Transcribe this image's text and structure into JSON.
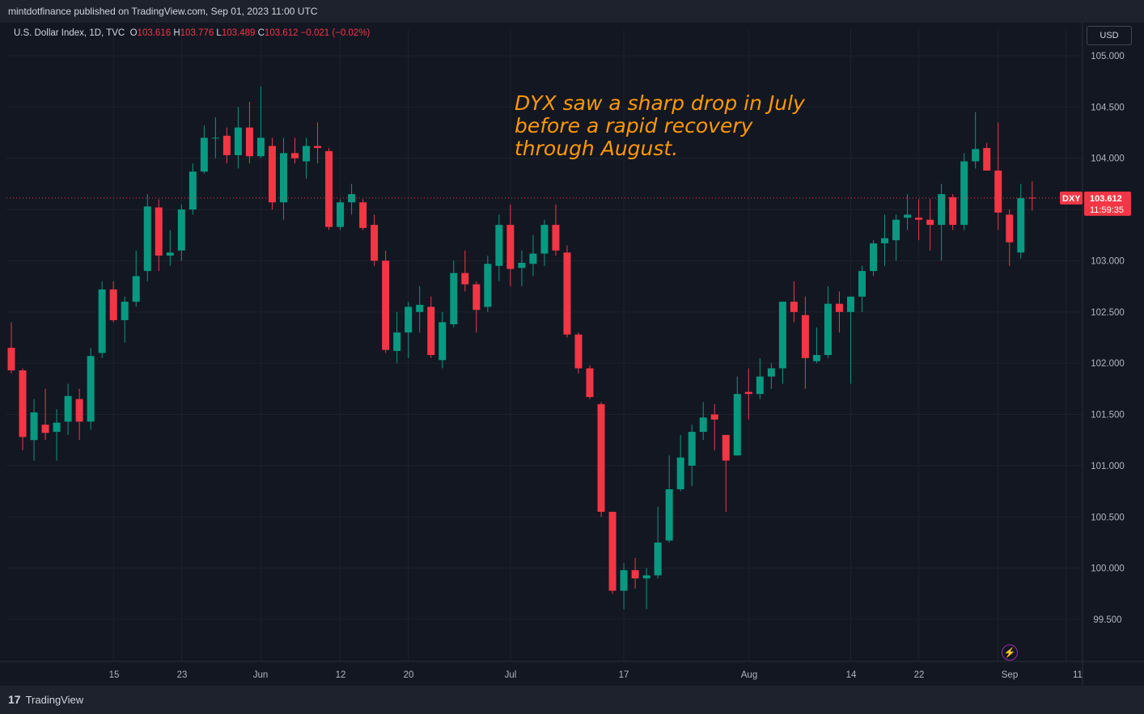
{
  "header": {
    "published_by": "mintdotfinance published on TradingView.com, Sep 01, 2023 11:00 UTC"
  },
  "legend": {
    "symbol": "U.S. Dollar Index, 1D, TVC",
    "o_label": "O",
    "o_value": "103.616",
    "h_label": "H",
    "h_value": "103.776",
    "l_label": "L",
    "l_value": "103.489",
    "c_label": "C",
    "c_value": "103.612",
    "change": "−0.021 (−0.02%)"
  },
  "currency_button": "USD",
  "annotation": {
    "line1": "DYX saw a sharp drop in July",
    "line2": "before a rapid recovery",
    "line3": "through August."
  },
  "price_tag": {
    "ticker": "DXY",
    "price": "103.612",
    "countdown": "11:59:35"
  },
  "footer": {
    "brand": "TradingView",
    "logo_text": "17"
  },
  "colors": {
    "up": "#089981",
    "down": "#f23645",
    "background": "#131722",
    "grid": "#1e222d",
    "annotation": "#ff9800"
  },
  "chart_data": {
    "type": "candlestick",
    "ylim": [
      99.2,
      105.15
    ],
    "y_ticks": [
      "105.000",
      "104.500",
      "104.000",
      "103.500",
      "103.000",
      "102.500",
      "102.000",
      "101.500",
      "101.000",
      "100.500",
      "100.000",
      "99.500"
    ],
    "x_tick_labels": [
      "15",
      "23",
      "Jun",
      "12",
      "20",
      "Jul",
      "17",
      "Aug",
      "14",
      "22",
      "Sep",
      "11"
    ],
    "last_price": 103.612,
    "candles": [
      {
        "o": 102.15,
        "h": 102.4,
        "l": 101.9,
        "c": 101.93
      },
      {
        "o": 101.93,
        "h": 101.95,
        "l": 101.15,
        "c": 101.28
      },
      {
        "o": 101.25,
        "h": 101.65,
        "l": 101.05,
        "c": 101.52
      },
      {
        "o": 101.4,
        "h": 101.75,
        "l": 101.25,
        "c": 101.32
      },
      {
        "o": 101.33,
        "h": 101.55,
        "l": 101.05,
        "c": 101.42
      },
      {
        "o": 101.43,
        "h": 101.8,
        "l": 101.3,
        "c": 101.68
      },
      {
        "o": 101.65,
        "h": 101.75,
        "l": 101.25,
        "c": 101.43
      },
      {
        "o": 101.43,
        "h": 102.15,
        "l": 101.35,
        "c": 102.07
      },
      {
        "o": 102.1,
        "h": 102.8,
        "l": 102.05,
        "c": 102.72
      },
      {
        "o": 102.72,
        "h": 102.8,
        "l": 102.4,
        "c": 102.42
      },
      {
        "o": 102.42,
        "h": 102.65,
        "l": 102.2,
        "c": 102.6
      },
      {
        "o": 102.6,
        "h": 103.1,
        "l": 102.55,
        "c": 102.85
      },
      {
        "o": 102.9,
        "h": 103.65,
        "l": 102.8,
        "c": 103.53
      },
      {
        "o": 103.52,
        "h": 103.6,
        "l": 102.9,
        "c": 103.05
      },
      {
        "o": 103.05,
        "h": 103.3,
        "l": 102.95,
        "c": 103.08
      },
      {
        "o": 103.1,
        "h": 103.55,
        "l": 103.0,
        "c": 103.5
      },
      {
        "o": 103.5,
        "h": 103.95,
        "l": 103.45,
        "c": 103.87
      },
      {
        "o": 103.87,
        "h": 104.32,
        "l": 103.85,
        "c": 104.2
      },
      {
        "o": 104.2,
        "h": 104.4,
        "l": 104.0,
        "c": 104.2
      },
      {
        "o": 104.22,
        "h": 104.3,
        "l": 103.95,
        "c": 104.03
      },
      {
        "o": 104.03,
        "h": 104.5,
        "l": 103.9,
        "c": 104.3
      },
      {
        "o": 104.3,
        "h": 104.55,
        "l": 103.95,
        "c": 104.02
      },
      {
        "o": 104.02,
        "h": 104.7,
        "l": 104.0,
        "c": 104.2
      },
      {
        "o": 104.12,
        "h": 104.2,
        "l": 103.5,
        "c": 103.57
      },
      {
        "o": 103.57,
        "h": 104.2,
        "l": 103.4,
        "c": 104.05
      },
      {
        "o": 104.05,
        "h": 104.2,
        "l": 103.95,
        "c": 104.0
      },
      {
        "o": 103.97,
        "h": 104.2,
        "l": 103.8,
        "c": 104.12
      },
      {
        "o": 104.12,
        "h": 104.35,
        "l": 103.95,
        "c": 104.1
      },
      {
        "o": 104.07,
        "h": 104.1,
        "l": 103.3,
        "c": 103.33
      },
      {
        "o": 103.33,
        "h": 103.6,
        "l": 103.3,
        "c": 103.57
      },
      {
        "o": 103.57,
        "h": 103.75,
        "l": 103.45,
        "c": 103.65
      },
      {
        "o": 103.57,
        "h": 103.6,
        "l": 103.3,
        "c": 103.32
      },
      {
        "o": 103.35,
        "h": 103.45,
        "l": 102.95,
        "c": 103.0
      },
      {
        "o": 103.0,
        "h": 103.1,
        "l": 102.1,
        "c": 102.13
      },
      {
        "o": 102.12,
        "h": 102.5,
        "l": 102.0,
        "c": 102.3
      },
      {
        "o": 102.3,
        "h": 102.6,
        "l": 102.05,
        "c": 102.55
      },
      {
        "o": 102.5,
        "h": 102.75,
        "l": 102.3,
        "c": 102.57
      },
      {
        "o": 102.55,
        "h": 102.65,
        "l": 102.05,
        "c": 102.08
      },
      {
        "o": 102.03,
        "h": 102.5,
        "l": 101.95,
        "c": 102.4
      },
      {
        "o": 102.38,
        "h": 103.0,
        "l": 102.35,
        "c": 102.88
      },
      {
        "o": 102.88,
        "h": 103.1,
        "l": 102.7,
        "c": 102.77
      },
      {
        "o": 102.77,
        "h": 102.8,
        "l": 102.3,
        "c": 102.52
      },
      {
        "o": 102.55,
        "h": 103.05,
        "l": 102.5,
        "c": 102.97
      },
      {
        "o": 102.95,
        "h": 103.45,
        "l": 102.8,
        "c": 103.35
      },
      {
        "o": 103.35,
        "h": 103.55,
        "l": 102.75,
        "c": 102.92
      },
      {
        "o": 102.93,
        "h": 103.1,
        "l": 102.75,
        "c": 102.98
      },
      {
        "o": 102.97,
        "h": 103.25,
        "l": 102.85,
        "c": 103.07
      },
      {
        "o": 103.07,
        "h": 103.4,
        "l": 102.95,
        "c": 103.35
      },
      {
        "o": 103.35,
        "h": 103.55,
        "l": 103.05,
        "c": 103.1
      },
      {
        "o": 103.08,
        "h": 103.15,
        "l": 102.25,
        "c": 102.28
      },
      {
        "o": 102.28,
        "h": 102.3,
        "l": 101.9,
        "c": 101.95
      },
      {
        "o": 101.95,
        "h": 101.98,
        "l": 101.65,
        "c": 101.67
      },
      {
        "o": 101.6,
        "h": 101.62,
        "l": 100.5,
        "c": 100.55
      },
      {
        "o": 100.55,
        "h": 100.55,
        "l": 99.75,
        "c": 99.78
      },
      {
        "o": 99.78,
        "h": 100.05,
        "l": 99.6,
        "c": 99.98
      },
      {
        "o": 99.98,
        "h": 100.1,
        "l": 99.8,
        "c": 99.9
      },
      {
        "o": 99.9,
        "h": 100.0,
        "l": 99.6,
        "c": 99.93
      },
      {
        "o": 99.93,
        "h": 100.6,
        "l": 99.9,
        "c": 100.25
      },
      {
        "o": 100.27,
        "h": 101.1,
        "l": 100.25,
        "c": 100.77
      },
      {
        "o": 100.77,
        "h": 101.3,
        "l": 100.75,
        "c": 101.08
      },
      {
        "o": 101.0,
        "h": 101.4,
        "l": 100.8,
        "c": 101.33
      },
      {
        "o": 101.33,
        "h": 101.62,
        "l": 101.25,
        "c": 101.47
      },
      {
        "o": 101.5,
        "h": 101.6,
        "l": 101.15,
        "c": 101.45
      },
      {
        "o": 101.3,
        "h": 101.3,
        "l": 100.55,
        "c": 101.05
      },
      {
        "o": 101.1,
        "h": 101.87,
        "l": 101.1,
        "c": 101.7
      },
      {
        "o": 101.72,
        "h": 101.95,
        "l": 101.45,
        "c": 101.7
      },
      {
        "o": 101.7,
        "h": 102.05,
        "l": 101.65,
        "c": 101.87
      },
      {
        "o": 101.87,
        "h": 102.0,
        "l": 101.75,
        "c": 101.95
      },
      {
        "o": 101.95,
        "h": 102.6,
        "l": 101.8,
        "c": 102.6
      },
      {
        "o": 102.6,
        "h": 102.8,
        "l": 102.4,
        "c": 102.5
      },
      {
        "o": 102.47,
        "h": 102.65,
        "l": 101.75,
        "c": 102.05
      },
      {
        "o": 102.02,
        "h": 102.35,
        "l": 102.0,
        "c": 102.08
      },
      {
        "o": 102.08,
        "h": 102.75,
        "l": 102.05,
        "c": 102.58
      },
      {
        "o": 102.58,
        "h": 102.7,
        "l": 102.3,
        "c": 102.5
      },
      {
        "o": 102.5,
        "h": 102.65,
        "l": 101.8,
        "c": 102.65
      },
      {
        "o": 102.65,
        "h": 102.95,
        "l": 102.5,
        "c": 102.9
      },
      {
        "o": 102.9,
        "h": 103.2,
        "l": 102.85,
        "c": 103.17
      },
      {
        "o": 103.17,
        "h": 103.45,
        "l": 102.95,
        "c": 103.22
      },
      {
        "o": 103.2,
        "h": 103.45,
        "l": 103.0,
        "c": 103.4
      },
      {
        "o": 103.42,
        "h": 103.65,
        "l": 103.3,
        "c": 103.45
      },
      {
        "o": 103.42,
        "h": 103.6,
        "l": 103.2,
        "c": 103.4
      },
      {
        "o": 103.4,
        "h": 103.6,
        "l": 103.1,
        "c": 103.35
      },
      {
        "o": 103.35,
        "h": 103.75,
        "l": 103.0,
        "c": 103.65
      },
      {
        "o": 103.62,
        "h": 103.65,
        "l": 103.3,
        "c": 103.35
      },
      {
        "o": 103.35,
        "h": 104.05,
        "l": 103.3,
        "c": 103.97
      },
      {
        "o": 103.97,
        "h": 104.45,
        "l": 103.9,
        "c": 104.09
      },
      {
        "o": 104.1,
        "h": 104.15,
        "l": 103.9,
        "c": 103.88
      },
      {
        "o": 103.88,
        "h": 104.35,
        "l": 103.3,
        "c": 103.47
      },
      {
        "o": 103.45,
        "h": 103.5,
        "l": 102.95,
        "c": 103.18
      },
      {
        "o": 103.08,
        "h": 103.75,
        "l": 103.02,
        "c": 103.61
      },
      {
        "o": 103.616,
        "h": 103.776,
        "l": 103.489,
        "c": 103.612
      }
    ]
  }
}
